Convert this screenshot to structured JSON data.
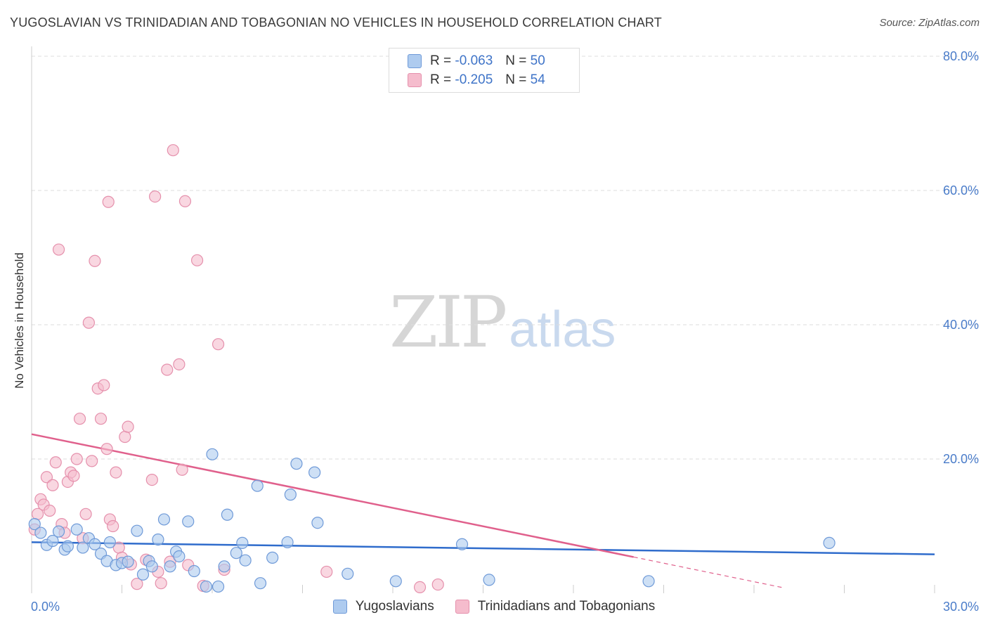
{
  "title": "YUGOSLAVIAN VS TRINIDADIAN AND TOBAGONIAN NO VEHICLES IN HOUSEHOLD CORRELATION CHART",
  "source": "Source: ZipAtlas.com",
  "watermark": {
    "zip": "ZIP",
    "atlas": "atlas"
  },
  "legend": {
    "rows": [
      {
        "r_label": "R = ",
        "r_value": "-0.063",
        "n_label": "N = ",
        "n_value": "50"
      },
      {
        "r_label": "R = ",
        "r_value": "-0.205",
        "n_label": "N = ",
        "n_value": "54"
      }
    ]
  },
  "bottom_legend": {
    "series1": "Yugoslavians",
    "series2": "Trinidadians and Tobagonians"
  },
  "colors": {
    "series1_fill": "#aecbef",
    "series1_stroke": "#6f9ad8",
    "series1_line": "#2f6ccc",
    "series2_fill": "#f5bccd",
    "series2_stroke": "#e590ac",
    "series2_line": "#e0608c",
    "grid": "#dddddd",
    "axis_text": "#4a7cc9"
  },
  "chart_data": {
    "type": "scatter",
    "title": "YUGOSLAVIAN VS TRINIDADIAN AND TOBAGONIAN NO VEHICLES IN HOUSEHOLD CORRELATION CHART",
    "xlabel": "",
    "ylabel": "No Vehicles in Household",
    "xlim": [
      0,
      30
    ],
    "ylim": [
      0,
      80
    ],
    "x_tick_labels": [
      "0.0%",
      "30.0%"
    ],
    "y_ticks": [
      20,
      40,
      60,
      80
    ],
    "y_tick_labels": [
      "20.0%",
      "40.0%",
      "60.0%",
      "80.0%"
    ],
    "grid": true,
    "series": [
      {
        "name": "Yugoslavians",
        "r": -0.063,
        "n": 50,
        "trend": {
          "x": [
            0,
            30
          ],
          "y": [
            7.6,
            5.8
          ]
        },
        "points": [
          [
            0.1,
            10.3
          ],
          [
            0.3,
            9.0
          ],
          [
            0.5,
            7.2
          ],
          [
            0.7,
            7.8
          ],
          [
            0.9,
            9.2
          ],
          [
            1.1,
            6.5
          ],
          [
            1.2,
            7.0
          ],
          [
            1.5,
            9.5
          ],
          [
            1.7,
            6.8
          ],
          [
            1.9,
            8.2
          ],
          [
            2.1,
            7.3
          ],
          [
            2.3,
            5.9
          ],
          [
            2.5,
            4.8
          ],
          [
            2.6,
            7.6
          ],
          [
            2.8,
            4.2
          ],
          [
            3.0,
            4.5
          ],
          [
            3.2,
            4.7
          ],
          [
            3.5,
            9.3
          ],
          [
            3.7,
            2.8
          ],
          [
            3.9,
            4.8
          ],
          [
            4.0,
            4.0
          ],
          [
            4.2,
            8.0
          ],
          [
            4.4,
            11.0
          ],
          [
            4.6,
            4.0
          ],
          [
            4.8,
            6.2
          ],
          [
            4.9,
            5.5
          ],
          [
            5.2,
            10.7
          ],
          [
            5.4,
            3.3
          ],
          [
            5.8,
            1.0
          ],
          [
            6.0,
            20.7
          ],
          [
            6.2,
            1.0
          ],
          [
            6.4,
            4.0
          ],
          [
            6.5,
            11.7
          ],
          [
            6.8,
            6.0
          ],
          [
            7.0,
            7.5
          ],
          [
            7.1,
            4.9
          ],
          [
            7.5,
            16.0
          ],
          [
            7.6,
            1.5
          ],
          [
            8.0,
            5.3
          ],
          [
            8.5,
            7.6
          ],
          [
            8.6,
            14.7
          ],
          [
            8.8,
            19.3
          ],
          [
            9.4,
            18.0
          ],
          [
            9.5,
            10.5
          ],
          [
            10.5,
            2.9
          ],
          [
            12.1,
            1.8
          ],
          [
            14.3,
            7.3
          ],
          [
            15.2,
            2.0
          ],
          [
            20.5,
            1.8
          ],
          [
            26.5,
            7.5
          ]
        ]
      },
      {
        "name": "Trinidadians and Tobagonians",
        "r": -0.205,
        "n": 54,
        "trend": {
          "x": [
            0,
            20.0
          ],
          "y": [
            23.7,
            5.4
          ]
        },
        "trend_dashed": {
          "x": [
            20.0,
            25.0
          ],
          "y": [
            5.4,
            0.8
          ]
        },
        "points": [
          [
            0.1,
            9.5
          ],
          [
            0.2,
            11.8
          ],
          [
            0.3,
            14.0
          ],
          [
            0.4,
            13.2
          ],
          [
            0.5,
            17.3
          ],
          [
            0.6,
            12.3
          ],
          [
            0.7,
            16.1
          ],
          [
            0.8,
            19.5
          ],
          [
            0.9,
            51.2
          ],
          [
            1.0,
            10.3
          ],
          [
            1.1,
            9.0
          ],
          [
            1.2,
            16.6
          ],
          [
            1.3,
            18.0
          ],
          [
            1.4,
            17.5
          ],
          [
            1.5,
            20.0
          ],
          [
            1.6,
            26.0
          ],
          [
            1.7,
            8.2
          ],
          [
            1.8,
            11.8
          ],
          [
            1.9,
            40.3
          ],
          [
            2.0,
            19.7
          ],
          [
            2.1,
            49.5
          ],
          [
            2.2,
            30.5
          ],
          [
            2.3,
            26.0
          ],
          [
            2.4,
            31.0
          ],
          [
            2.5,
            21.5
          ],
          [
            2.55,
            58.3
          ],
          [
            2.6,
            11.0
          ],
          [
            2.7,
            10.0
          ],
          [
            2.8,
            18.0
          ],
          [
            2.9,
            6.8
          ],
          [
            3.0,
            5.3
          ],
          [
            3.1,
            23.3
          ],
          [
            3.2,
            24.8
          ],
          [
            3.3,
            4.3
          ],
          [
            3.5,
            1.4
          ],
          [
            3.8,
            5.0
          ],
          [
            4.0,
            16.9
          ],
          [
            4.1,
            59.1
          ],
          [
            4.2,
            3.2
          ],
          [
            4.3,
            1.5
          ],
          [
            4.5,
            33.3
          ],
          [
            4.6,
            4.7
          ],
          [
            4.7,
            66.0
          ],
          [
            4.9,
            34.1
          ],
          [
            5.0,
            18.4
          ],
          [
            5.1,
            58.4
          ],
          [
            5.2,
            4.2
          ],
          [
            5.5,
            49.6
          ],
          [
            5.7,
            1.1
          ],
          [
            6.2,
            37.1
          ],
          [
            6.4,
            3.5
          ],
          [
            9.8,
            3.2
          ],
          [
            12.9,
            0.9
          ],
          [
            13.5,
            1.3
          ]
        ]
      }
    ]
  }
}
